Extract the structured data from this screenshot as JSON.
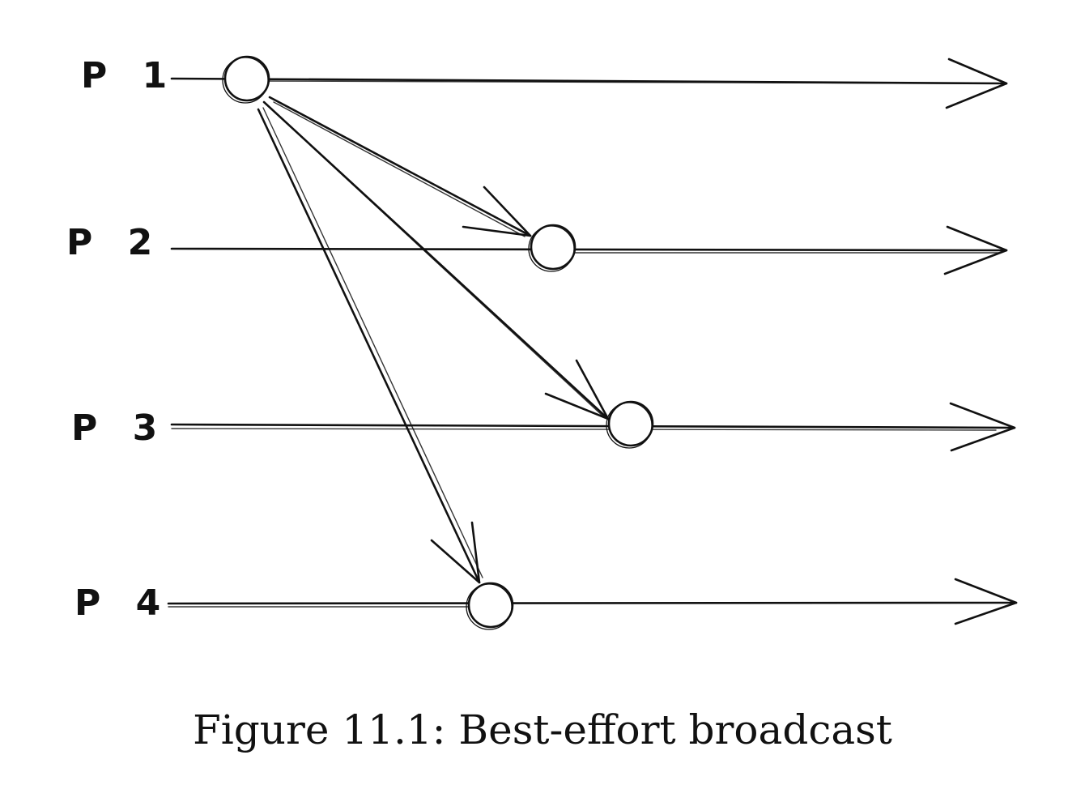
{
  "processes": [
    {
      "id": "p1",
      "label": "P 1"
    },
    {
      "id": "p2",
      "label": "P 2"
    },
    {
      "id": "p3",
      "label": "P 3"
    },
    {
      "id": "p4",
      "label": "P 4"
    }
  ],
  "events": [
    {
      "process": "p1",
      "kind": "broadcast"
    },
    {
      "process": "p2",
      "kind": "deliver"
    },
    {
      "process": "p3",
      "kind": "deliver"
    },
    {
      "process": "p4",
      "kind": "deliver"
    }
  ],
  "messages": [
    {
      "from": "p1",
      "to": "p2"
    },
    {
      "from": "p1",
      "to": "p3"
    },
    {
      "from": "p1",
      "to": "p4"
    }
  ],
  "caption": "Figure 11.1: Best-effort broadcast"
}
